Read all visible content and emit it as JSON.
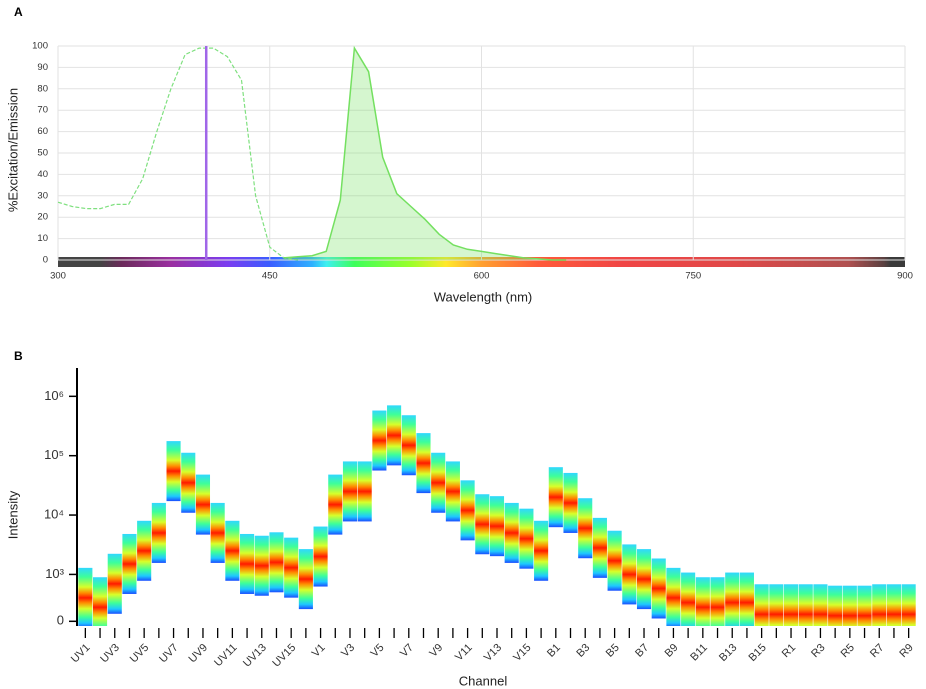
{
  "chart_data": [
    {
      "type": "line",
      "panel_label": "A",
      "y_label": "%Excitation/Emission",
      "x_label": "Wavelength (nm)",
      "x": [
        300,
        310,
        320,
        330,
        340,
        350,
        360,
        370,
        380,
        390,
        400,
        410,
        420,
        430,
        440,
        450,
        460,
        470,
        480,
        490,
        500,
        510,
        520,
        530,
        540,
        550,
        560,
        570,
        580,
        590,
        600,
        610,
        620,
        630,
        640,
        650,
        660
      ],
      "series": [
        {
          "name": "Excitation",
          "color": "#7fe07f",
          "dashed": true,
          "values": [
            27,
            25,
            24,
            24,
            26,
            26,
            38,
            60,
            80,
            96,
            99,
            99,
            95,
            84,
            30,
            6,
            1,
            0,
            null,
            null,
            null,
            null,
            null,
            null,
            null,
            null,
            null,
            null,
            null,
            null,
            null,
            null,
            null,
            null,
            null,
            null,
            null
          ]
        },
        {
          "name": "Emission",
          "color": "#74e060",
          "fill": true,
          "values": [
            null,
            null,
            null,
            null,
            null,
            null,
            null,
            null,
            null,
            null,
            null,
            null,
            null,
            null,
            null,
            null,
            1,
            1.5,
            2,
            4,
            28,
            99,
            88,
            48,
            31,
            25,
            19,
            12,
            7,
            5,
            4,
            3,
            2,
            1,
            0.5,
            0,
            0
          ]
        }
      ],
      "laser": 405,
      "laser_color": "#a066e8",
      "xlim": [
        300,
        900
      ],
      "xticks": [
        300,
        450,
        600,
        750,
        900
      ],
      "ylim": [
        0,
        100
      ],
      "yticks": [
        0,
        10,
        20,
        30,
        40,
        50,
        60,
        70,
        80,
        90,
        100
      ],
      "grid": true
    },
    {
      "type": "density",
      "panel_label": "B",
      "y_label": "Intensity",
      "x_label": "Channel",
      "categories": [
        "UV1",
        null,
        "UV3",
        null,
        "UV5",
        null,
        "UV7",
        null,
        "UV9",
        null,
        "UV11",
        null,
        "UV13",
        null,
        "UV15",
        null,
        "V1",
        null,
        "V3",
        null,
        "V5",
        null,
        "V7",
        null,
        "V9",
        null,
        "V11",
        null,
        "V13",
        null,
        "V15",
        null,
        "B1",
        null,
        "B3",
        null,
        "B5",
        null,
        "B7",
        null,
        "B9",
        null,
        "B11",
        null,
        "B13",
        null,
        "B15",
        null,
        "R1",
        null,
        "R3",
        null,
        "R5",
        null,
        "R7",
        null,
        "R9"
      ],
      "values": [
        500,
        300,
        800,
        1500,
        2500,
        5000,
        55000,
        35000,
        15000,
        5000,
        2500,
        1500,
        1400,
        1600,
        1300,
        900,
        2000,
        15000,
        25000,
        25000,
        180000,
        220000,
        150000,
        75000,
        35000,
        25000,
        12000,
        7000,
        6500,
        5000,
        4000,
        2500,
        20000,
        16000,
        6000,
        2800,
        1700,
        1000,
        900,
        700,
        500,
        400,
        300,
        300,
        400,
        400,
        150,
        150,
        150,
        150,
        150,
        120,
        120,
        120,
        150,
        150,
        150
      ],
      "yscale": "biexponential",
      "ylim": [
        -100,
        3000000
      ],
      "yticks": [
        0,
        {
          "value": 1000,
          "label": "10³"
        },
        {
          "value": 10000,
          "label": "10⁴"
        },
        {
          "value": 100000,
          "label": "10⁵"
        },
        {
          "value": 1000000,
          "label": "10⁶"
        }
      ]
    }
  ]
}
